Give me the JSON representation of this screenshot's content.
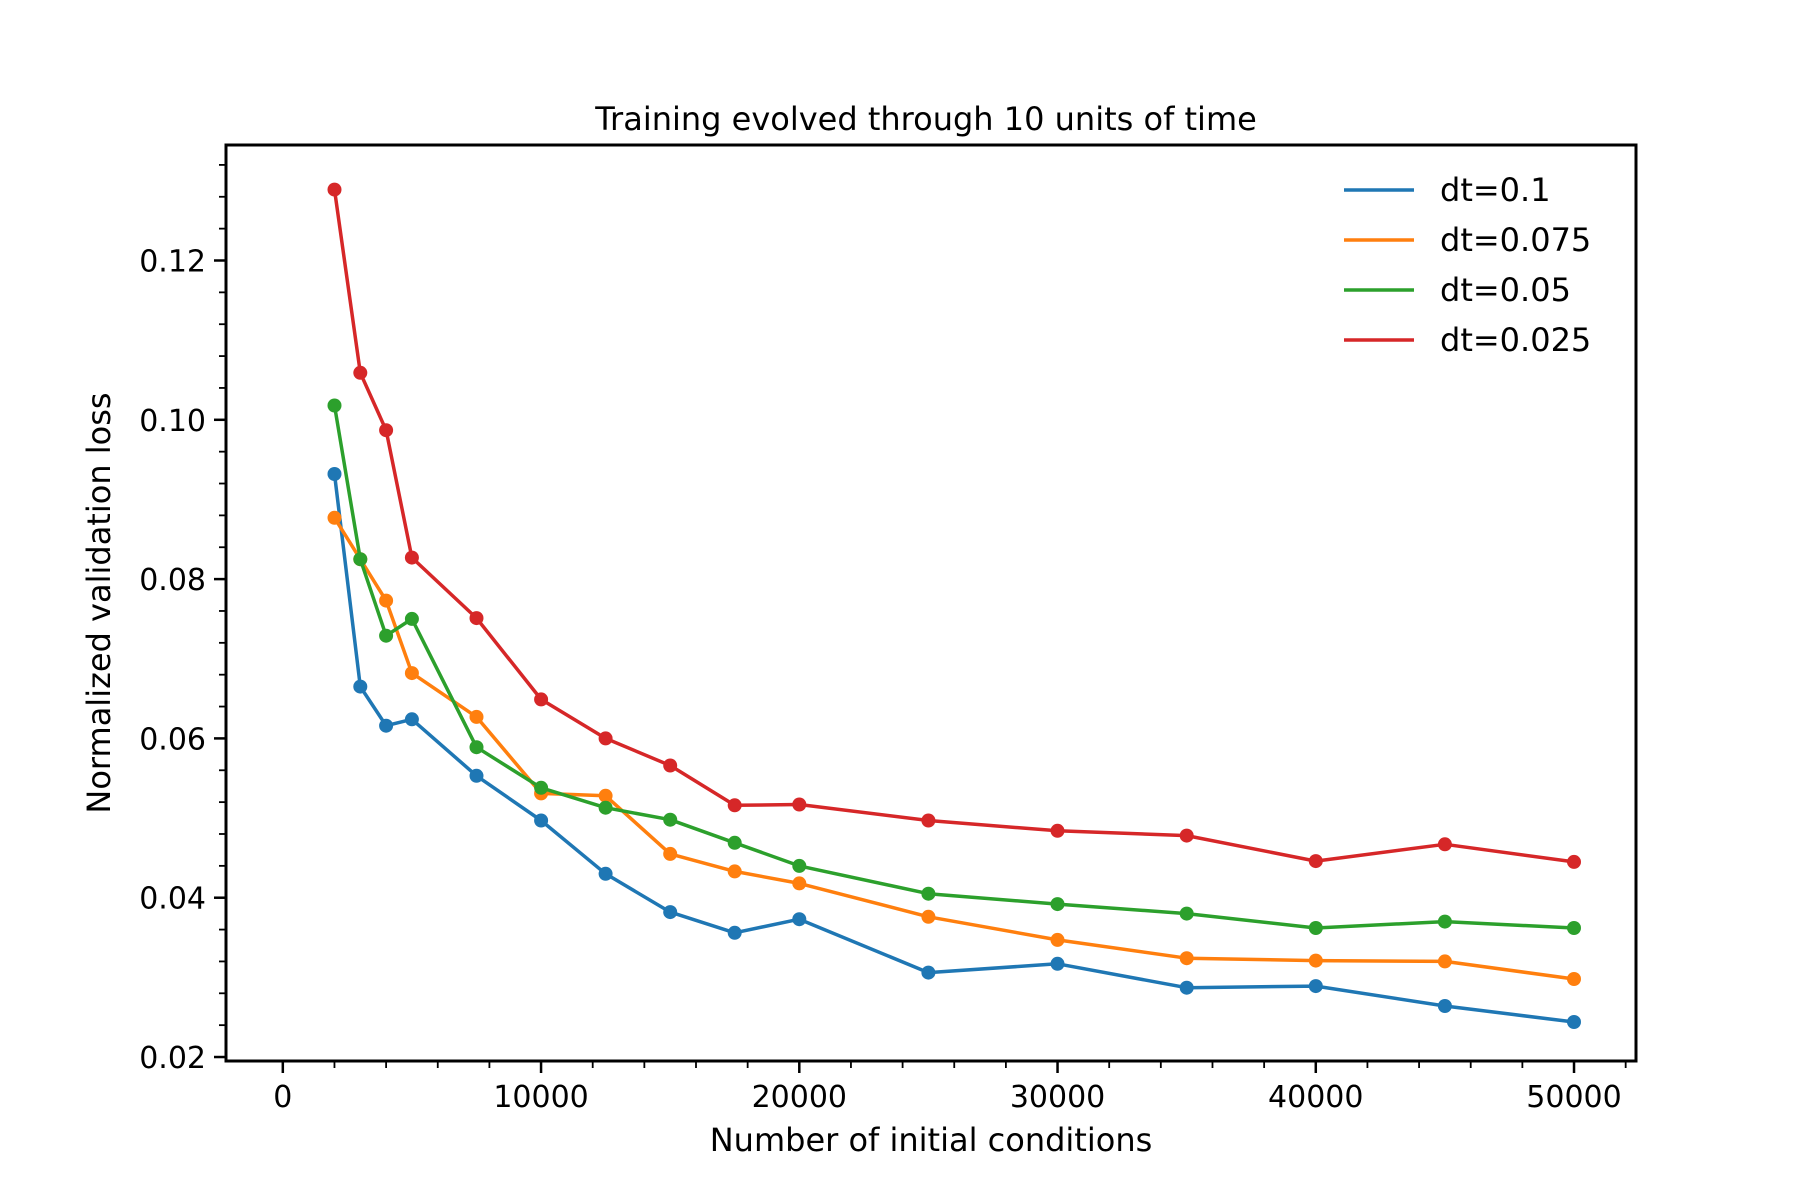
{
  "chart_data": {
    "type": "line",
    "title": "Training evolved through 10 units of time",
    "xlabel": "Number of initial conditions",
    "ylabel": "Normalized validation loss",
    "xlim": [
      -2200,
      52400
    ],
    "ylim": [
      0.0195,
      0.1345
    ],
    "xticks": [
      0,
      10000,
      20000,
      30000,
      40000,
      50000
    ],
    "xtick_labels": [
      "0",
      "10000",
      "20000",
      "30000",
      "40000",
      "50000"
    ],
    "yticks": [
      0.02,
      0.04,
      0.06,
      0.08,
      0.1,
      0.12
    ],
    "ytick_labels": [
      "0.02",
      "0.04",
      "0.06",
      "0.08",
      "0.10",
      "0.12"
    ],
    "grid": false,
    "legend_position": "top-right",
    "x": [
      2000,
      3000,
      4000,
      5000,
      7500,
      10000,
      12500,
      15000,
      17500,
      20000,
      25000,
      30000,
      35000,
      40000,
      45000,
      50000
    ],
    "series": [
      {
        "name": "dt=0.1",
        "color": "#1f77b4",
        "values": [
          0.0932,
          0.0665,
          0.0616,
          0.0624,
          0.0553,
          0.0497,
          0.043,
          0.0382,
          0.0356,
          0.0373,
          0.0306,
          0.0317,
          0.0287,
          0.0289,
          0.0264,
          0.0244
        ]
      },
      {
        "name": "dt=0.075",
        "color": "#ff7f0e",
        "values": [
          0.0877,
          0.0825,
          0.0773,
          0.0682,
          0.0627,
          0.0531,
          0.0528,
          0.0455,
          0.0433,
          0.0418,
          0.0376,
          0.0347,
          0.0324,
          0.0321,
          0.032,
          0.0298
        ]
      },
      {
        "name": "dt=0.05",
        "color": "#2ca02c",
        "values": [
          0.1018,
          0.0825,
          0.0729,
          0.075,
          0.0589,
          0.0538,
          0.0513,
          0.0498,
          0.0469,
          0.044,
          0.0405,
          0.0392,
          0.038,
          0.0362,
          0.037,
          0.0362
        ]
      },
      {
        "name": "dt=0.025",
        "color": "#d62728",
        "values": [
          0.1289,
          0.1059,
          0.0987,
          0.0827,
          0.0751,
          0.0649,
          0.06,
          0.0566,
          0.0516,
          0.0517,
          0.0497,
          0.0484,
          0.0478,
          0.0446,
          0.0467,
          0.0445
        ]
      }
    ]
  }
}
